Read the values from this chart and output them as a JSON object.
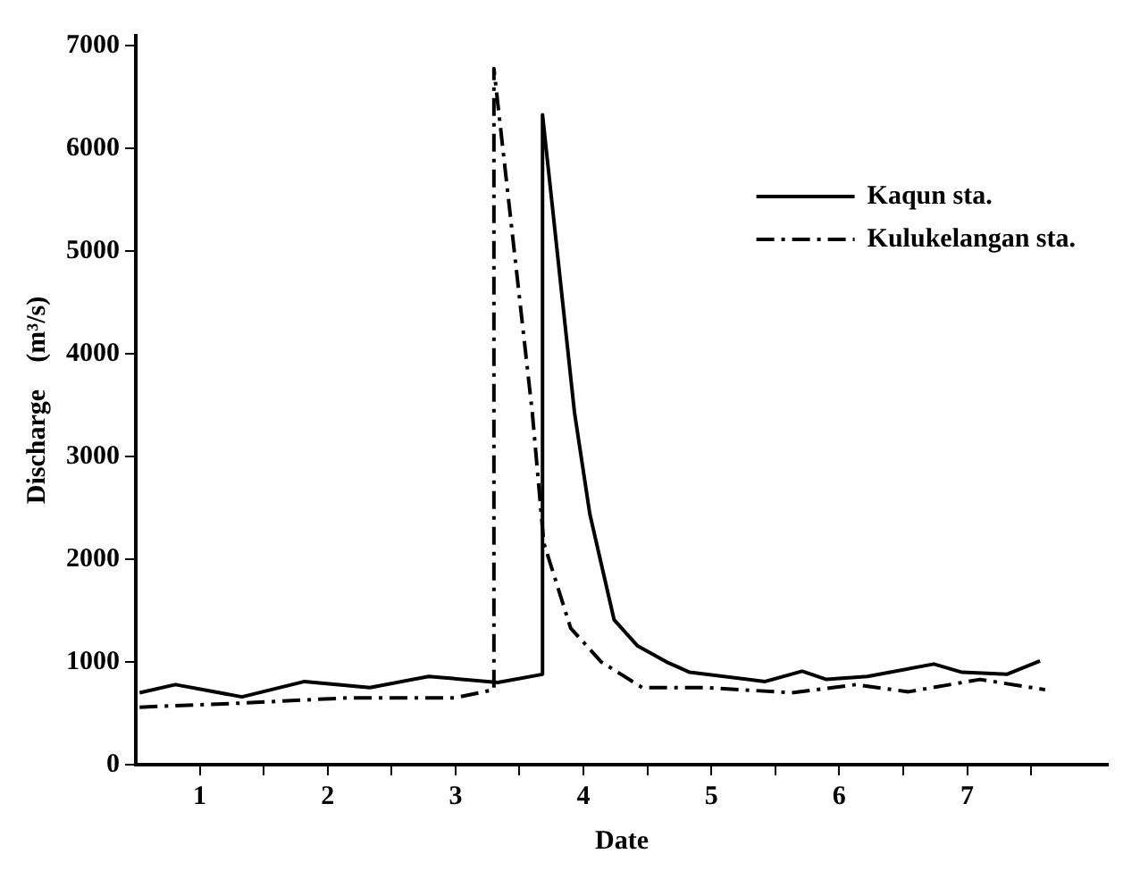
{
  "chart_data": {
    "type": "line",
    "xlabel": "Date",
    "ylabel": "Discharge    (m³/s)",
    "xlim": [
      0.5,
      8.1
    ],
    "ylim": [
      0,
      7100
    ],
    "xticks": [
      1,
      {
        "value": 1.5,
        "label": null
      },
      2,
      {
        "value": 2.5,
        "label": null
      },
      3,
      {
        "value": 3.5,
        "label": null
      },
      4,
      {
        "value": 4.5,
        "label": null
      },
      5,
      {
        "value": 5.5,
        "label": null
      },
      6,
      {
        "value": 6.5,
        "label": null
      },
      7,
      {
        "value": 7.5,
        "label": null
      }
    ],
    "yticks": [
      0,
      1000,
      2000,
      3000,
      4000,
      5000,
      6000,
      7000
    ],
    "grid": false,
    "legend": "top right",
    "marker": "none",
    "series": [
      {
        "name": "Kaqun sta.",
        "color": "#000000",
        "line_style": "solid",
        "x": [
          0.53,
          0.81,
          1.33,
          1.82,
          2.33,
          2.79,
          3.33,
          3.68,
          3.68,
          3.93,
          4.05,
          4.24,
          4.42,
          4.65,
          4.83,
          5.42,
          5.71,
          5.9,
          6.22,
          6.74,
          6.96,
          7.31,
          7.57
        ],
        "values": [
          700,
          780,
          660,
          810,
          750,
          860,
          800,
          880,
          6330,
          3430,
          2440,
          1410,
          1160,
          1000,
          900,
          810,
          910,
          830,
          860,
          980,
          900,
          880,
          1010
        ]
      },
      {
        "name": "Kulukelangan sta.",
        "color": "#000000",
        "line_style": "dashed",
        "x": [
          0.53,
          1.33,
          2.15,
          2.99,
          3.3,
          3.3,
          3.6,
          3.69,
          3.9,
          4.14,
          4.46,
          4.97,
          5.63,
          6.13,
          6.54,
          7.1,
          7.61
        ],
        "values": [
          560,
          600,
          650,
          650,
          730,
          6780,
          3430,
          2160,
          1330,
          1000,
          750,
          750,
          700,
          780,
          710,
          830,
          730
        ]
      }
    ]
  }
}
